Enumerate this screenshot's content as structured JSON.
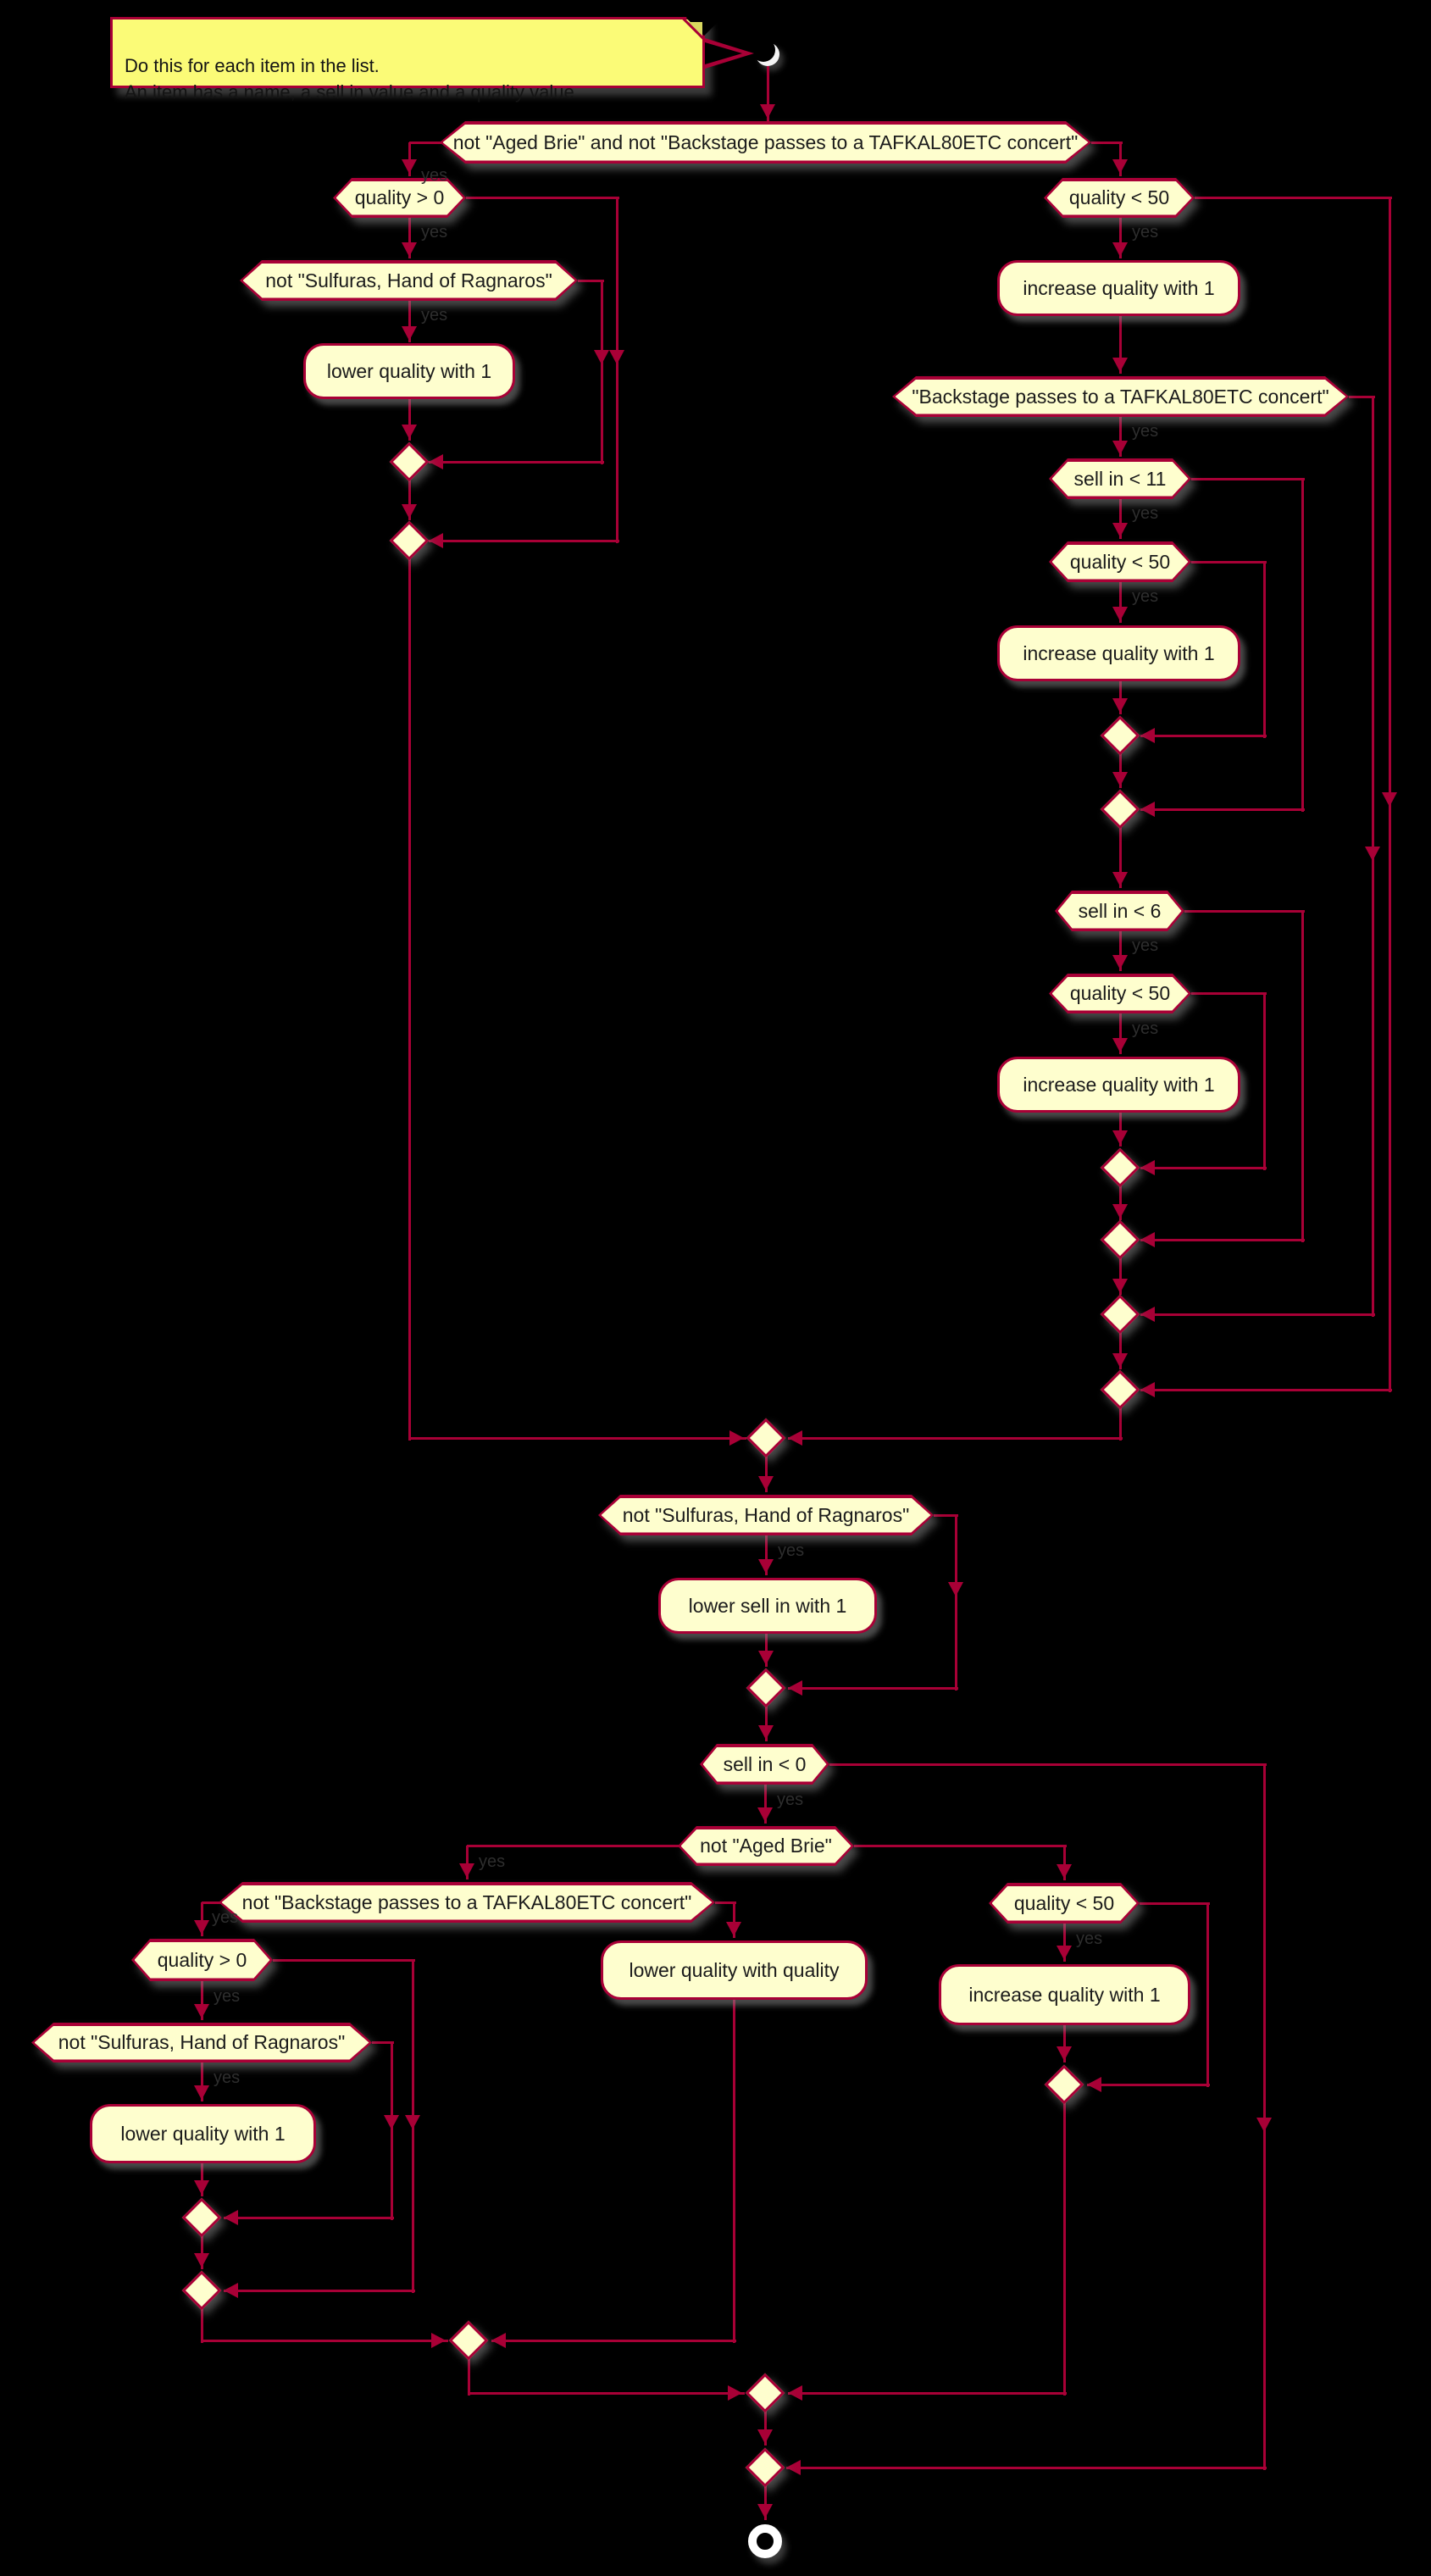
{
  "colors": {
    "background": "#000000",
    "shape_fill": "#FEFECE",
    "shape_border": "#A80036",
    "line": "#A80036",
    "note_fill": "#FBFB77",
    "text": "#1b1b1b",
    "branch_label": "#2e2e2e"
  },
  "note": {
    "text": "Do this for each item in the list.\nAn item has a name, a sell in value and a quality value"
  },
  "branch_yes_label": "yes",
  "nodes": [
    {
      "id": "hex1",
      "kind": "condition",
      "label": "not \"Aged Brie\" and not \"Backstage passes to a TAFKAL80ETC concert\""
    },
    {
      "id": "hex2",
      "kind": "condition",
      "label": "quality > 0"
    },
    {
      "id": "hex3",
      "kind": "condition",
      "label": "quality < 50"
    },
    {
      "id": "hex4",
      "kind": "condition",
      "label": "not \"Sulfuras, Hand of Ragnaros\""
    },
    {
      "id": "box1",
      "kind": "action",
      "label": "lower quality with 1"
    },
    {
      "id": "box2",
      "kind": "action",
      "label": "increase quality with 1"
    },
    {
      "id": "hex5",
      "kind": "condition",
      "label": "\"Backstage passes to a TAFKAL80ETC concert\""
    },
    {
      "id": "hex6",
      "kind": "condition",
      "label": "sell in < 11"
    },
    {
      "id": "hex7",
      "kind": "condition",
      "label": "quality < 50"
    },
    {
      "id": "box3",
      "kind": "action",
      "label": "increase quality with 1"
    },
    {
      "id": "hex8",
      "kind": "condition",
      "label": "sell in < 6"
    },
    {
      "id": "hex9",
      "kind": "condition",
      "label": "quality < 50"
    },
    {
      "id": "box4",
      "kind": "action",
      "label": "increase quality with 1"
    },
    {
      "id": "hex10",
      "kind": "condition",
      "label": "not \"Sulfuras, Hand of Ragnaros\""
    },
    {
      "id": "box5",
      "kind": "action",
      "label": "lower sell in with 1"
    },
    {
      "id": "hex11",
      "kind": "condition",
      "label": "sell in < 0"
    },
    {
      "id": "hex12",
      "kind": "condition",
      "label": "not \"Aged Brie\""
    },
    {
      "id": "hex13",
      "kind": "condition",
      "label": "not \"Backstage passes to a TAFKAL80ETC concert\""
    },
    {
      "id": "box6",
      "kind": "action",
      "label": "lower quality with quality"
    },
    {
      "id": "hex14",
      "kind": "condition",
      "label": "quality < 50"
    },
    {
      "id": "box8",
      "kind": "action",
      "label": "increase quality with 1"
    },
    {
      "id": "hex15",
      "kind": "condition",
      "label": "quality > 0"
    },
    {
      "id": "hex16",
      "kind": "condition",
      "label": "not \"Sulfuras, Hand of Ragnaros\""
    },
    {
      "id": "box7",
      "kind": "action",
      "label": "lower quality with 1"
    }
  ]
}
